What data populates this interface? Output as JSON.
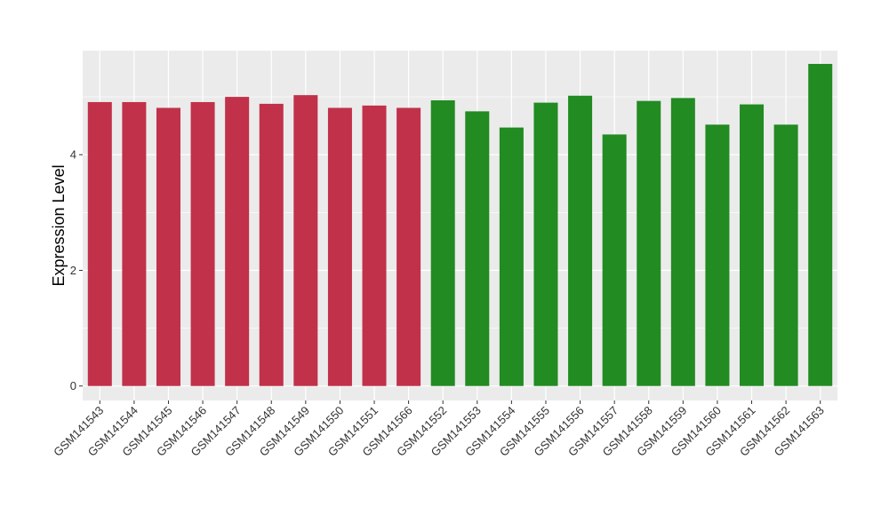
{
  "chart_data": {
    "type": "bar",
    "title": "",
    "xlabel": "",
    "ylabel": "Expression Level",
    "ylim": [
      -0.25,
      5.8
    ],
    "yticks": [
      0,
      2,
      4
    ],
    "grid": true,
    "legend": "none",
    "categories": [
      "GSM141543",
      "GSM141544",
      "GSM141545",
      "GSM141546",
      "GSM141547",
      "GSM141548",
      "GSM141549",
      "GSM141550",
      "GSM141551",
      "GSM141566",
      "GSM141552",
      "GSM141553",
      "GSM141554",
      "GSM141555",
      "GSM141556",
      "GSM141557",
      "GSM141558",
      "GSM141559",
      "GSM141560",
      "GSM141561",
      "GSM141562",
      "GSM141563"
    ],
    "values": [
      4.91,
      4.91,
      4.81,
      4.91,
      5.0,
      4.88,
      5.03,
      4.81,
      4.85,
      4.81,
      4.94,
      4.75,
      4.47,
      4.9,
      5.02,
      4.35,
      4.93,
      4.98,
      4.52,
      4.87,
      4.52,
      5.57
    ],
    "groups": [
      0,
      0,
      0,
      0,
      0,
      0,
      0,
      0,
      0,
      0,
      1,
      1,
      1,
      1,
      1,
      1,
      1,
      1,
      1,
      1,
      1,
      1
    ],
    "colors": [
      "#c1314a",
      "#228b22"
    ],
    "panel_background": "#ebebeb",
    "grid_color": "#ffffff"
  }
}
